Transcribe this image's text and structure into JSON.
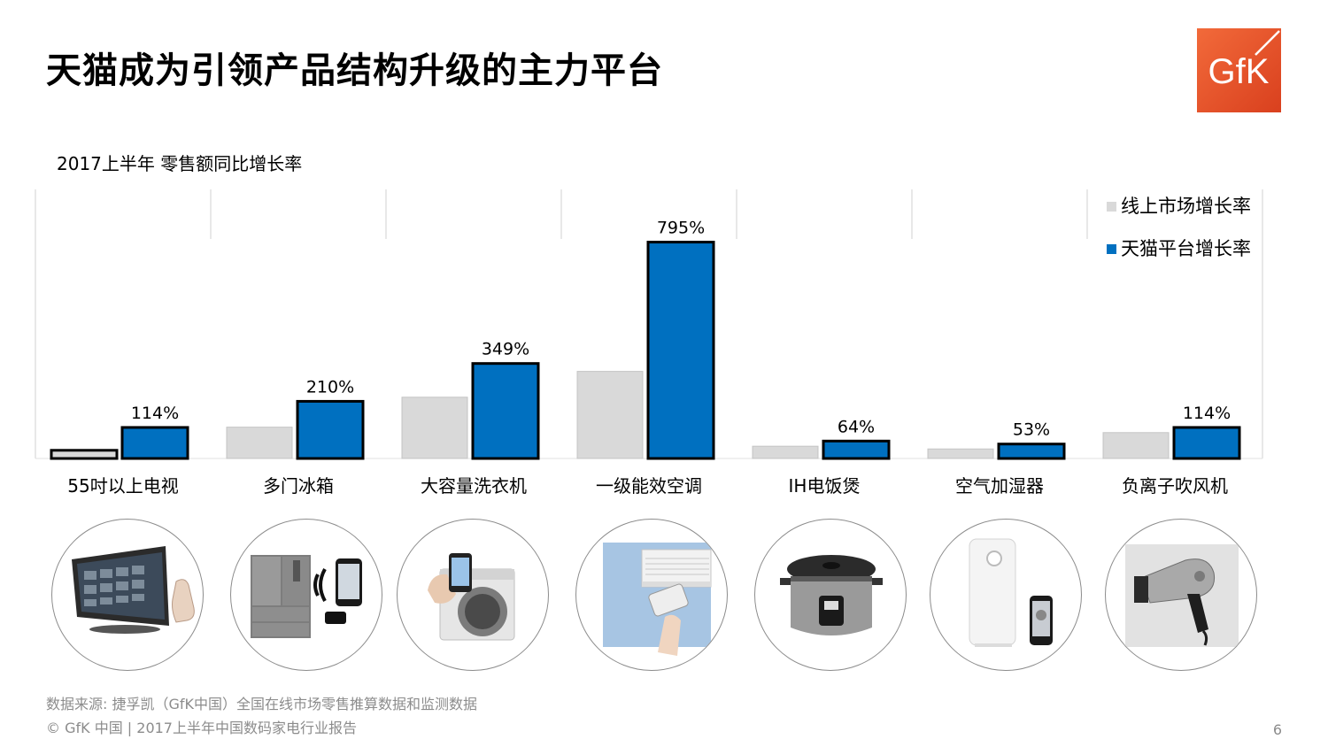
{
  "header": {
    "title": "天猫成为引领产品结构升级的主力平台",
    "logo_text": "GfK"
  },
  "colors": {
    "online": "#d9d9d9",
    "tmall": "#0070c0",
    "logo_orange": "#e8532b",
    "muted_text": "#8c8c8c"
  },
  "chart_data": {
    "type": "bar",
    "title": "2017上半年 零售额同比增长率",
    "categories": [
      "55吋以上电视",
      "多门冰箱",
      "大容量洗衣机",
      "一级能效空调",
      "IH电饭煲",
      "空气加湿器",
      "负离子吹风机"
    ],
    "series": [
      {
        "name": "线上市场增长率",
        "values": [
          30,
          115,
          225,
          320,
          45,
          35,
          95
        ],
        "labels": [
          "",
          "",
          "",
          "",
          "",
          "",
          ""
        ]
      },
      {
        "name": "天猫平台增长率",
        "values": [
          114,
          210,
          349,
          795,
          64,
          53,
          114
        ],
        "labels": [
          "114%",
          "210%",
          "349%",
          "795%",
          "64%",
          "53%",
          "114%"
        ]
      }
    ],
    "ylim": [
      0,
      800
    ],
    "legend_position": "top-right"
  },
  "photos": [
    {
      "icon": "tv-icon"
    },
    {
      "icon": "fridge-icon"
    },
    {
      "icon": "washing-machine-icon"
    },
    {
      "icon": "air-conditioner-icon"
    },
    {
      "icon": "rice-cooker-icon"
    },
    {
      "icon": "humidifier-icon"
    },
    {
      "icon": "hair-dryer-icon"
    }
  ],
  "footer": {
    "source": "数据来源: 捷孚凯（GfK中国）全国在线市场零售推算数据和监测数据",
    "copyright": "© GfK 中国 | 2017上半年中国数码家电行业报告",
    "page_number": "6"
  }
}
